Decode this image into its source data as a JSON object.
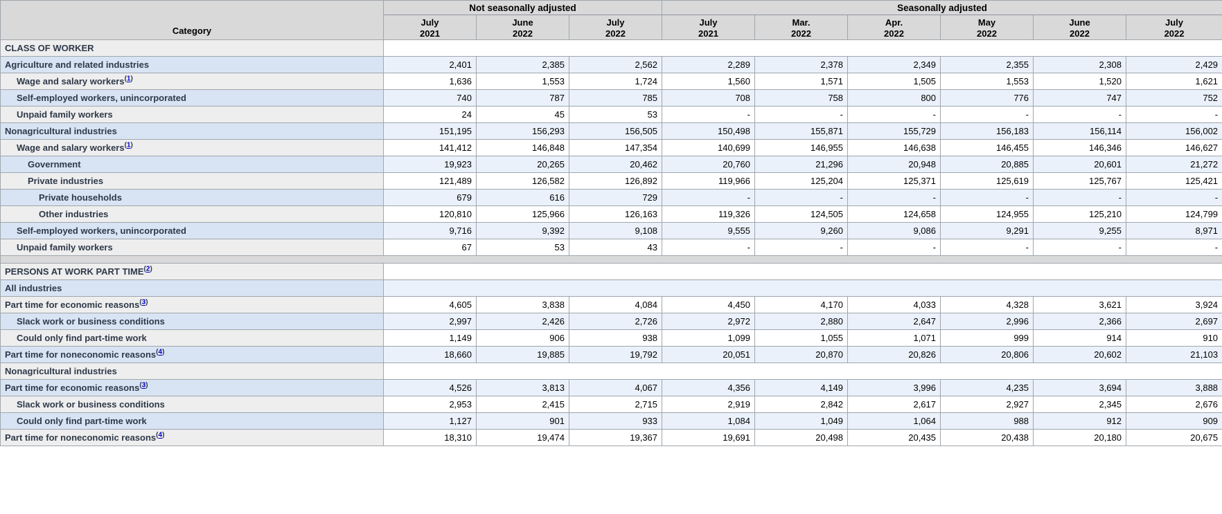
{
  "colors": {
    "header_bg": "#d9d9d9",
    "category_row_blue": "#d8e4f3",
    "category_row_gray": "#eeeeee",
    "data_cell_blue": "#eaf1fa",
    "data_cell_white": "#ffffff",
    "border": "#9fa6ad",
    "label_text": "#2e3949",
    "footnote_link": "#0000cc"
  },
  "chart_data": {
    "type": "table",
    "category_header": "Category",
    "group_headers": [
      {
        "label": "Not seasonally adjusted",
        "colspan": 3
      },
      {
        "label": "Seasonally adjusted",
        "colspan": 6
      }
    ],
    "columns": [
      {
        "month": "July",
        "year": "2021"
      },
      {
        "month": "June",
        "year": "2022"
      },
      {
        "month": "July",
        "year": "2022"
      },
      {
        "month": "July",
        "year": "2021"
      },
      {
        "month": "Mar.",
        "year": "2022"
      },
      {
        "month": "Apr.",
        "year": "2022"
      },
      {
        "month": "May",
        "year": "2022"
      },
      {
        "month": "June",
        "year": "2022"
      },
      {
        "month": "July",
        "year": "2022"
      }
    ],
    "rows": [
      {
        "kind": "section",
        "label": "CLASS OF WORKER",
        "footnote": null,
        "indent": 0,
        "shade": "gray",
        "data_bg": "white",
        "values": []
      },
      {
        "kind": "data",
        "label": "Agriculture and related industries",
        "footnote": null,
        "indent": 0,
        "shade": "blue",
        "values": [
          "2,401",
          "2,385",
          "2,562",
          "2,289",
          "2,378",
          "2,349",
          "2,355",
          "2,308",
          "2,429"
        ]
      },
      {
        "kind": "data",
        "label": "Wage and salary workers",
        "footnote": "1",
        "indent": 1,
        "shade": "gray",
        "values": [
          "1,636",
          "1,553",
          "1,724",
          "1,560",
          "1,571",
          "1,505",
          "1,553",
          "1,520",
          "1,621"
        ]
      },
      {
        "kind": "data",
        "label": "Self-employed workers, unincorporated",
        "footnote": null,
        "indent": 1,
        "shade": "blue",
        "values": [
          "740",
          "787",
          "785",
          "708",
          "758",
          "800",
          "776",
          "747",
          "752"
        ]
      },
      {
        "kind": "data",
        "label": "Unpaid family workers",
        "footnote": null,
        "indent": 1,
        "shade": "gray",
        "values": [
          "24",
          "45",
          "53",
          "-",
          "-",
          "-",
          "-",
          "-",
          "-"
        ]
      },
      {
        "kind": "data",
        "label": "Nonagricultural industries",
        "footnote": null,
        "indent": 0,
        "shade": "blue",
        "values": [
          "151,195",
          "156,293",
          "156,505",
          "150,498",
          "155,871",
          "155,729",
          "156,183",
          "156,114",
          "156,002"
        ]
      },
      {
        "kind": "data",
        "label": "Wage and salary workers",
        "footnote": "1",
        "indent": 1,
        "shade": "gray",
        "values": [
          "141,412",
          "146,848",
          "147,354",
          "140,699",
          "146,955",
          "146,638",
          "146,455",
          "146,346",
          "146,627"
        ]
      },
      {
        "kind": "data",
        "label": "Government",
        "footnote": null,
        "indent": 2,
        "shade": "blue",
        "values": [
          "19,923",
          "20,265",
          "20,462",
          "20,760",
          "21,296",
          "20,948",
          "20,885",
          "20,601",
          "21,272"
        ]
      },
      {
        "kind": "data",
        "label": "Private industries",
        "footnote": null,
        "indent": 2,
        "shade": "gray",
        "values": [
          "121,489",
          "126,582",
          "126,892",
          "119,966",
          "125,204",
          "125,371",
          "125,619",
          "125,767",
          "125,421"
        ]
      },
      {
        "kind": "data",
        "label": "Private households",
        "footnote": null,
        "indent": 3,
        "shade": "blue",
        "values": [
          "679",
          "616",
          "729",
          "-",
          "-",
          "-",
          "-",
          "-",
          "-"
        ]
      },
      {
        "kind": "data",
        "label": "Other industries",
        "footnote": null,
        "indent": 3,
        "shade": "gray",
        "values": [
          "120,810",
          "125,966",
          "126,163",
          "119,326",
          "124,505",
          "124,658",
          "124,955",
          "125,210",
          "124,799"
        ]
      },
      {
        "kind": "data",
        "label": "Self-employed workers, unincorporated",
        "footnote": null,
        "indent": 1,
        "shade": "blue",
        "values": [
          "9,716",
          "9,392",
          "9,108",
          "9,555",
          "9,260",
          "9,086",
          "9,291",
          "9,255",
          "8,971"
        ]
      },
      {
        "kind": "data",
        "label": "Unpaid family workers",
        "footnote": null,
        "indent": 1,
        "shade": "gray",
        "values": [
          "67",
          "53",
          "43",
          "-",
          "-",
          "-",
          "-",
          "-",
          "-"
        ]
      },
      {
        "kind": "spacer",
        "label": "",
        "footnote": null,
        "indent": 0,
        "shade": "gray",
        "values": []
      },
      {
        "kind": "section",
        "label": "PERSONS AT WORK PART TIME",
        "footnote": "2",
        "indent": 0,
        "shade": "gray",
        "data_bg": "white",
        "values": []
      },
      {
        "kind": "section",
        "label": "All industries",
        "footnote": null,
        "indent": 0,
        "shade": "blue",
        "data_bg": "blue",
        "values": []
      },
      {
        "kind": "data",
        "label": "Part time for economic reasons",
        "footnote": "3",
        "indent": 0,
        "shade": "gray",
        "values": [
          "4,605",
          "3,838",
          "4,084",
          "4,450",
          "4,170",
          "4,033",
          "4,328",
          "3,621",
          "3,924"
        ]
      },
      {
        "kind": "data",
        "label": "Slack work or business conditions",
        "footnote": null,
        "indent": 1,
        "shade": "blue",
        "values": [
          "2,997",
          "2,426",
          "2,726",
          "2,972",
          "2,880",
          "2,647",
          "2,996",
          "2,366",
          "2,697"
        ]
      },
      {
        "kind": "data",
        "label": "Could only find part-time work",
        "footnote": null,
        "indent": 1,
        "shade": "gray",
        "values": [
          "1,149",
          "906",
          "938",
          "1,099",
          "1,055",
          "1,071",
          "999",
          "914",
          "910"
        ]
      },
      {
        "kind": "data",
        "label": "Part time for noneconomic reasons",
        "footnote": "4",
        "indent": 0,
        "shade": "blue",
        "values": [
          "18,660",
          "19,885",
          "19,792",
          "20,051",
          "20,870",
          "20,826",
          "20,806",
          "20,602",
          "21,103"
        ]
      },
      {
        "kind": "section",
        "label": "Nonagricultural industries",
        "footnote": null,
        "indent": 0,
        "shade": "gray",
        "data_bg": "white",
        "values": []
      },
      {
        "kind": "data",
        "label": "Part time for economic reasons",
        "footnote": "3",
        "indent": 0,
        "shade": "blue",
        "values": [
          "4,526",
          "3,813",
          "4,067",
          "4,356",
          "4,149",
          "3,996",
          "4,235",
          "3,694",
          "3,888"
        ]
      },
      {
        "kind": "data",
        "label": "Slack work or business conditions",
        "footnote": null,
        "indent": 1,
        "shade": "gray",
        "values": [
          "2,953",
          "2,415",
          "2,715",
          "2,919",
          "2,842",
          "2,617",
          "2,927",
          "2,345",
          "2,676"
        ]
      },
      {
        "kind": "data",
        "label": "Could only find part-time work",
        "footnote": null,
        "indent": 1,
        "shade": "blue",
        "values": [
          "1,127",
          "901",
          "933",
          "1,084",
          "1,049",
          "1,064",
          "988",
          "912",
          "909"
        ]
      },
      {
        "kind": "data",
        "label": "Part time for noneconomic reasons",
        "footnote": "4",
        "indent": 0,
        "shade": "gray",
        "values": [
          "18,310",
          "19,474",
          "19,367",
          "19,691",
          "20,498",
          "20,435",
          "20,438",
          "20,180",
          "20,675"
        ]
      }
    ]
  }
}
